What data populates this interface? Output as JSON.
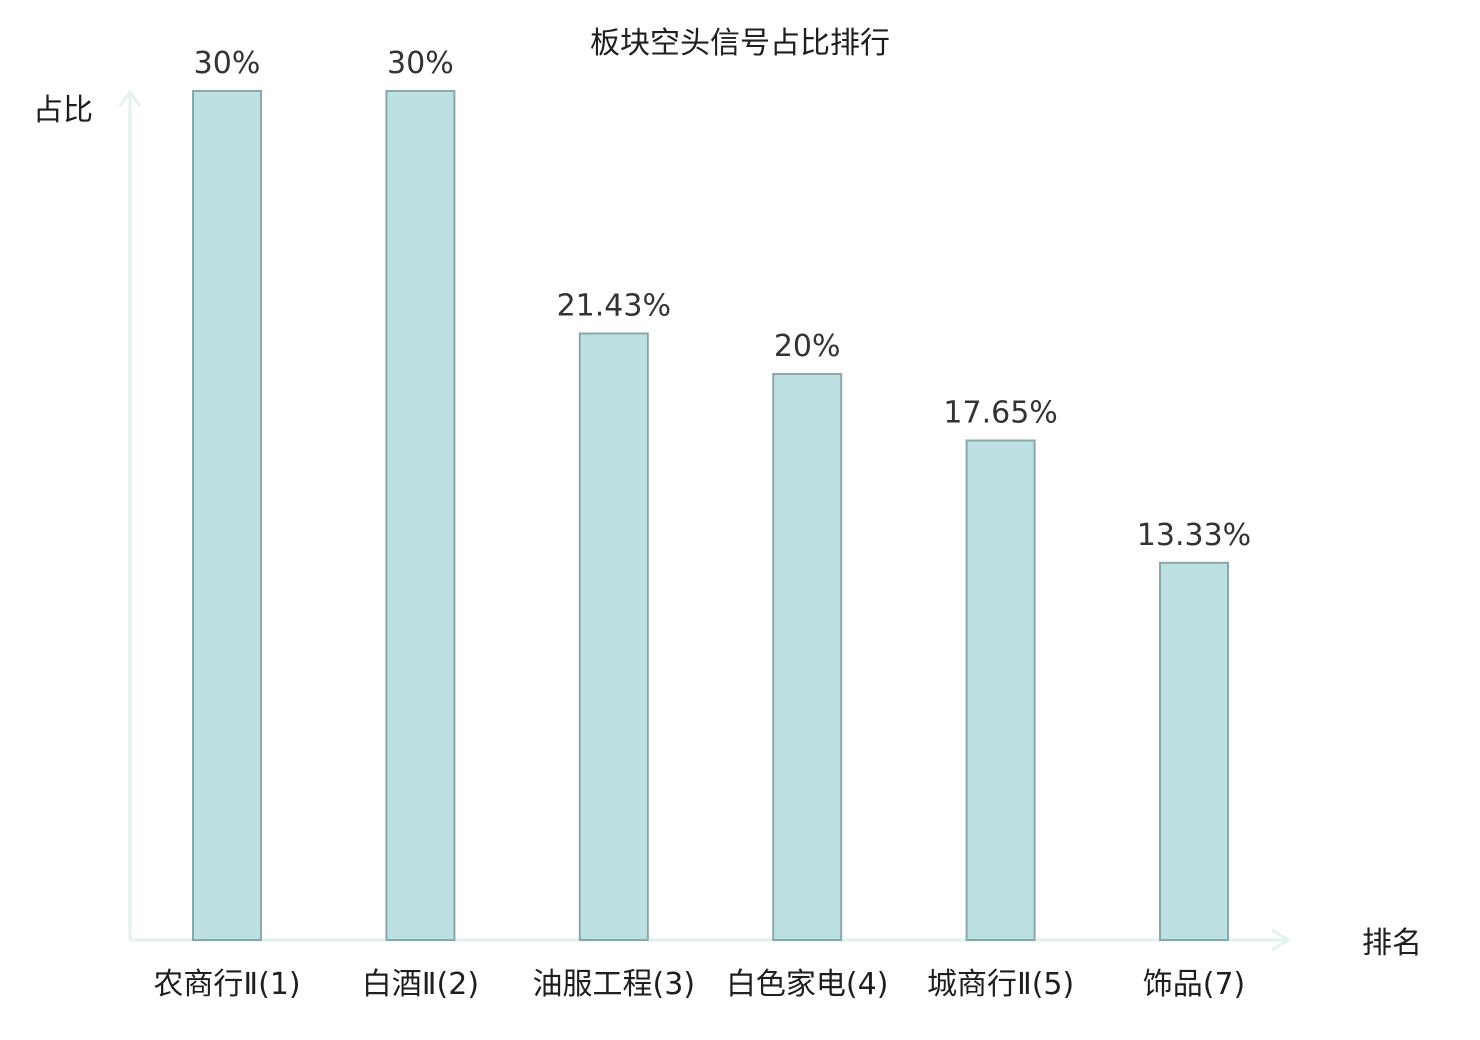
{
  "chart_data": {
    "type": "bar",
    "title": "板块空头信号占比排行",
    "xlabel": "排名",
    "ylabel": "占比",
    "categories": [
      "农商行Ⅱ(1)",
      "白酒Ⅱ(2)",
      "油服工程(3)",
      "白色家电(4)",
      "城商行Ⅱ(5)",
      "饰品(7)"
    ],
    "values": [
      30,
      30,
      21.43,
      20,
      17.65,
      13.33
    ],
    "value_labels": [
      "30%",
      "30%",
      "21.43%",
      "20%",
      "17.65%",
      "13.33%"
    ],
    "highlight_index": 5,
    "ylim": [
      0,
      30
    ],
    "grid": false,
    "colors": {
      "bar_fill": "#bde0e2",
      "bar_stroke": "#8aa7aa",
      "axis": "#e1f2ef",
      "text": "#1f1f1f",
      "value_text": "#333333",
      "highlight_text": "#d9191c"
    }
  }
}
